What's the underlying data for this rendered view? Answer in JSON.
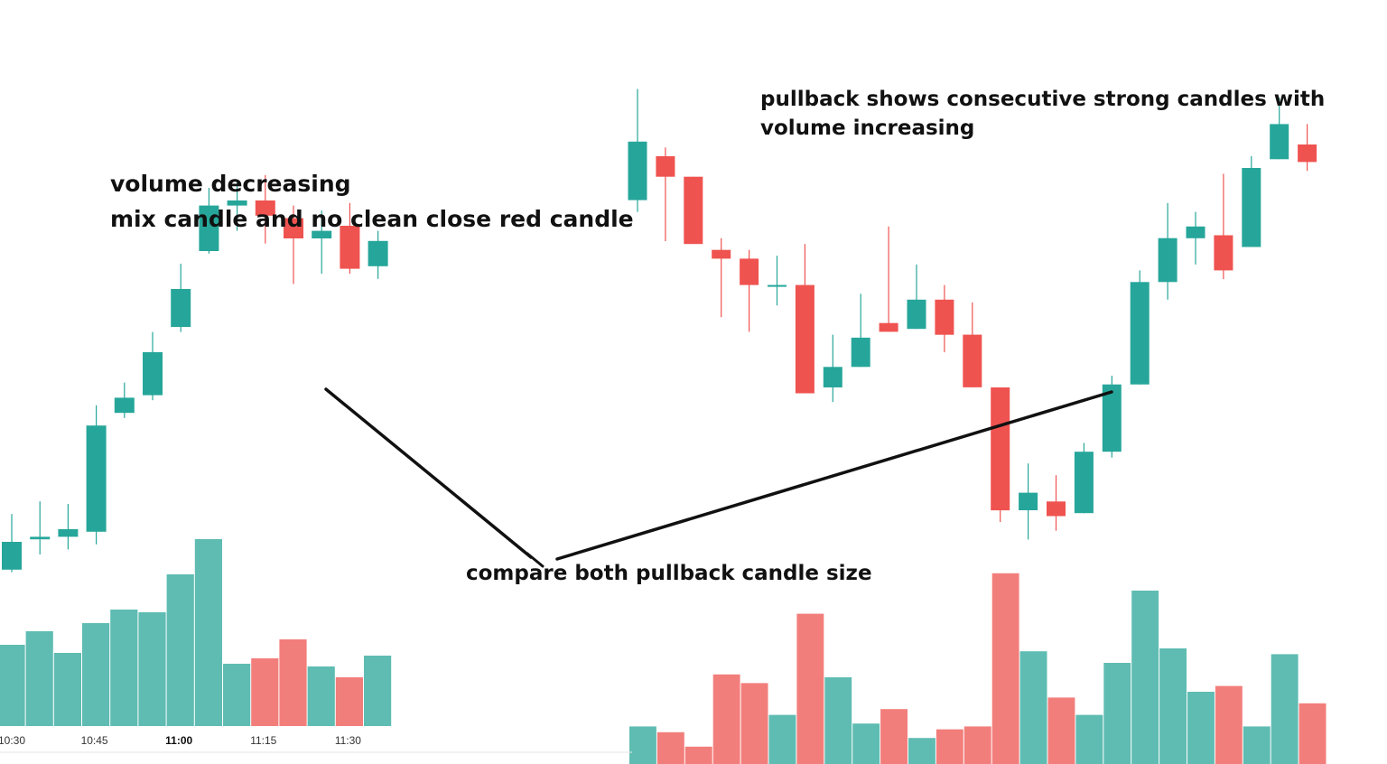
{
  "colors": {
    "up": "#26a69a",
    "down": "#ef5350",
    "up_volume": "#5fbcb2",
    "down_volume": "#f27e7b",
    "annotation_line": "#111111",
    "text": "#111111"
  },
  "annotations": {
    "left_line1": "volume decreasing",
    "left_line2": "mix candle and no clean close red candle",
    "right_line1": "pullback shows consecutive strong candles with",
    "right_line2": "volume increasing",
    "middle": "compare both pullback candle size"
  },
  "chart_data": [
    {
      "type": "candlestick",
      "panel": "left",
      "x_tick_labels": [
        {
          "label": "10:30",
          "index": 0,
          "bold": false
        },
        {
          "label": "10:45",
          "index": 3,
          "bold": false
        },
        {
          "label": "11:00",
          "index": 6,
          "bold": true
        },
        {
          "label": "11:15",
          "index": 9,
          "bold": false
        },
        {
          "label": "11:30",
          "index": 12,
          "bold": false
        }
      ],
      "price_range": [
        0,
        100
      ],
      "volume_range": [
        0,
        100
      ],
      "candles": [
        {
          "open": 24,
          "close": 35,
          "high": 46,
          "low": 23
        },
        {
          "open": 36,
          "close": 37,
          "high": 51,
          "low": 30
        },
        {
          "open": 37,
          "close": 40,
          "high": 50,
          "low": 32
        },
        {
          "open": 39,
          "close": 81,
          "high": 89,
          "low": 34
        },
        {
          "open": 86,
          "close": 92,
          "high": 98,
          "low": 84
        },
        {
          "open": 93,
          "close": 110,
          "high": 118,
          "low": 91
        },
        {
          "open": 120,
          "close": 135,
          "high": 145,
          "low": 118
        },
        {
          "open": 150,
          "close": 168,
          "high": 175,
          "low": 149
        },
        {
          "open": 168,
          "close": 170,
          "high": 177,
          "low": 158
        },
        {
          "open": 170,
          "close": 164,
          "high": 180,
          "low": 153
        },
        {
          "open": 163,
          "close": 155,
          "high": 168,
          "low": 137
        },
        {
          "open": 155,
          "close": 158,
          "high": 166,
          "low": 141
        },
        {
          "open": 160,
          "close": 143,
          "high": 169,
          "low": 141
        },
        {
          "open": 144,
          "close": 154,
          "high": 158,
          "low": 139
        }
      ],
      "volumes": [
        30,
        35,
        27,
        38,
        43,
        42,
        56,
        69,
        23,
        25,
        32,
        22,
        18,
        26
      ]
    },
    {
      "type": "candlestick",
      "panel": "right",
      "price_range": [
        0,
        100
      ],
      "volume_range": [
        0,
        100
      ],
      "candles": [
        {
          "open": 160,
          "close": 180,
          "high": 198,
          "low": 156
        },
        {
          "open": 175,
          "close": 168,
          "high": 178,
          "low": 146
        },
        {
          "open": 168,
          "close": 145,
          "high": 168,
          "low": 145
        },
        {
          "open": 143,
          "close": 140,
          "high": 147,
          "low": 120
        },
        {
          "open": 140,
          "close": 131,
          "high": 143,
          "low": 115
        },
        {
          "open": 131,
          "close": 131,
          "high": 141,
          "low": 124
        },
        {
          "open": 131,
          "close": 94,
          "high": 145,
          "low": 94
        },
        {
          "open": 96,
          "close": 103,
          "high": 114,
          "low": 91
        },
        {
          "open": 103,
          "close": 113,
          "high": 128,
          "low": 103
        },
        {
          "open": 118,
          "close": 115,
          "high": 151,
          "low": 115
        },
        {
          "open": 116,
          "close": 126,
          "high": 138,
          "low": 116
        },
        {
          "open": 126,
          "close": 114,
          "high": 131,
          "low": 108
        },
        {
          "open": 114,
          "close": 96,
          "high": 125,
          "low": 96
        },
        {
          "open": 96,
          "close": 54,
          "high": 96,
          "low": 50
        },
        {
          "open": 54,
          "close": 60,
          "high": 70,
          "low": 44
        },
        {
          "open": 57,
          "close": 52,
          "high": 66,
          "low": 47
        },
        {
          "open": 53,
          "close": 74,
          "high": 77,
          "low": 53
        },
        {
          "open": 74,
          "close": 97,
          "high": 100,
          "low": 72
        },
        {
          "open": 97,
          "close": 132,
          "high": 136,
          "low": 97
        },
        {
          "open": 132,
          "close": 147,
          "high": 159,
          "low": 126
        },
        {
          "open": 147,
          "close": 151,
          "high": 156,
          "low": 138
        },
        {
          "open": 148,
          "close": 136,
          "high": 169,
          "low": 133
        },
        {
          "open": 144,
          "close": 171,
          "high": 175,
          "low": 144
        },
        {
          "open": 174,
          "close": 186,
          "high": 195,
          "low": 174
        },
        {
          "open": 179,
          "close": 173,
          "high": 186,
          "low": 170
        }
      ],
      "volumes": [
        13,
        11,
        6,
        31,
        28,
        17,
        52,
        30,
        14,
        19,
        9,
        12,
        13,
        66,
        39,
        23,
        17,
        35,
        60,
        40,
        25,
        27,
        13,
        38,
        21
      ]
    }
  ]
}
